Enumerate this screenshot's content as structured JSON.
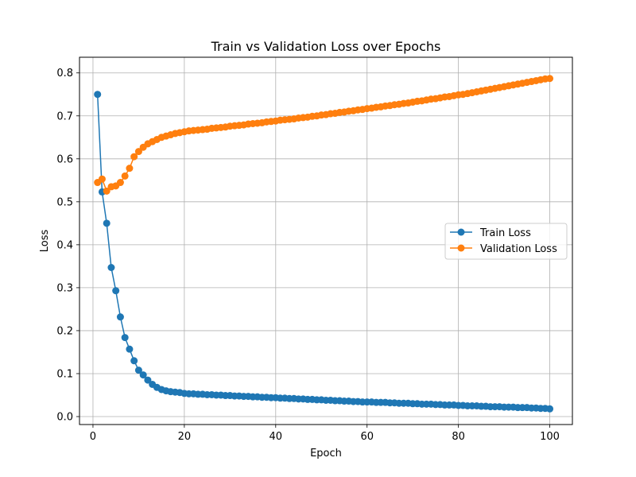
{
  "chart_data": {
    "type": "line",
    "title": "Train vs Validation Loss over Epochs",
    "xlabel": "Epoch",
    "ylabel": "Loss",
    "xlim": [
      -2.95,
      104.95
    ],
    "ylim": [
      -0.0185,
      0.8365
    ],
    "xticks": [
      0,
      20,
      40,
      60,
      80,
      100
    ],
    "yticks": [
      0.0,
      0.1,
      0.2,
      0.3,
      0.4,
      0.5,
      0.6,
      0.7,
      0.8
    ],
    "ytick_labels": [
      "0.0",
      "0.1",
      "0.2",
      "0.3",
      "0.4",
      "0.5",
      "0.6",
      "0.7",
      "0.8"
    ],
    "grid": true,
    "legend_position": "center-right",
    "x": [
      1,
      2,
      3,
      4,
      5,
      6,
      7,
      8,
      9,
      10,
      11,
      12,
      13,
      14,
      15,
      16,
      17,
      18,
      19,
      20,
      21,
      22,
      23,
      24,
      25,
      26,
      27,
      28,
      29,
      30,
      31,
      32,
      33,
      34,
      35,
      36,
      37,
      38,
      39,
      40,
      41,
      42,
      43,
      44,
      45,
      46,
      47,
      48,
      49,
      50,
      51,
      52,
      53,
      54,
      55,
      56,
      57,
      58,
      59,
      60,
      61,
      62,
      63,
      64,
      65,
      66,
      67,
      68,
      69,
      70,
      71,
      72,
      73,
      74,
      75,
      76,
      77,
      78,
      79,
      80,
      81,
      82,
      83,
      84,
      85,
      86,
      87,
      88,
      89,
      90,
      91,
      92,
      93,
      94,
      95,
      96,
      97,
      98,
      99,
      100
    ],
    "series": [
      {
        "name": "Train Loss",
        "color": "#1f77b4",
        "values": [
          0.75,
          0.523,
          0.45,
          0.347,
          0.293,
          0.232,
          0.184,
          0.157,
          0.13,
          0.108,
          0.097,
          0.085,
          0.075,
          0.068,
          0.063,
          0.06,
          0.058,
          0.057,
          0.056,
          0.054,
          0.053,
          0.053,
          0.052,
          0.052,
          0.051,
          0.051,
          0.05,
          0.05,
          0.049,
          0.049,
          0.048,
          0.048,
          0.047,
          0.047,
          0.046,
          0.046,
          0.045,
          0.045,
          0.044,
          0.044,
          0.043,
          0.043,
          0.042,
          0.042,
          0.041,
          0.041,
          0.04,
          0.04,
          0.039,
          0.039,
          0.038,
          0.038,
          0.037,
          0.037,
          0.036,
          0.036,
          0.035,
          0.035,
          0.034,
          0.034,
          0.034,
          0.033,
          0.033,
          0.033,
          0.032,
          0.032,
          0.031,
          0.031,
          0.031,
          0.03,
          0.03,
          0.029,
          0.029,
          0.029,
          0.028,
          0.028,
          0.027,
          0.027,
          0.027,
          0.026,
          0.026,
          0.025,
          0.025,
          0.025,
          0.024,
          0.024,
          0.023,
          0.023,
          0.023,
          0.022,
          0.022,
          0.022,
          0.021,
          0.021,
          0.021,
          0.02,
          0.02,
          0.019,
          0.019,
          0.018
        ]
      },
      {
        "name": "Validation Loss",
        "color": "#ff7f0e",
        "values": [
          0.545,
          0.553,
          0.525,
          0.535,
          0.537,
          0.545,
          0.56,
          0.578,
          0.605,
          0.617,
          0.627,
          0.635,
          0.64,
          0.645,
          0.65,
          0.653,
          0.656,
          0.659,
          0.661,
          0.663,
          0.665,
          0.666,
          0.667,
          0.668,
          0.669,
          0.671,
          0.672,
          0.673,
          0.674,
          0.676,
          0.677,
          0.678,
          0.679,
          0.681,
          0.682,
          0.683,
          0.684,
          0.686,
          0.687,
          0.688,
          0.69,
          0.691,
          0.692,
          0.693,
          0.695,
          0.696,
          0.697,
          0.699,
          0.7,
          0.702,
          0.703,
          0.705,
          0.706,
          0.708,
          0.709,
          0.711,
          0.712,
          0.714,
          0.715,
          0.717,
          0.718,
          0.72,
          0.721,
          0.723,
          0.724,
          0.726,
          0.727,
          0.729,
          0.73,
          0.732,
          0.734,
          0.735,
          0.737,
          0.739,
          0.74,
          0.742,
          0.744,
          0.745,
          0.747,
          0.749,
          0.75,
          0.752,
          0.754,
          0.756,
          0.758,
          0.76,
          0.762,
          0.764,
          0.766,
          0.768,
          0.77,
          0.772,
          0.774,
          0.776,
          0.778,
          0.78,
          0.782,
          0.784,
          0.786,
          0.787
        ]
      }
    ]
  }
}
